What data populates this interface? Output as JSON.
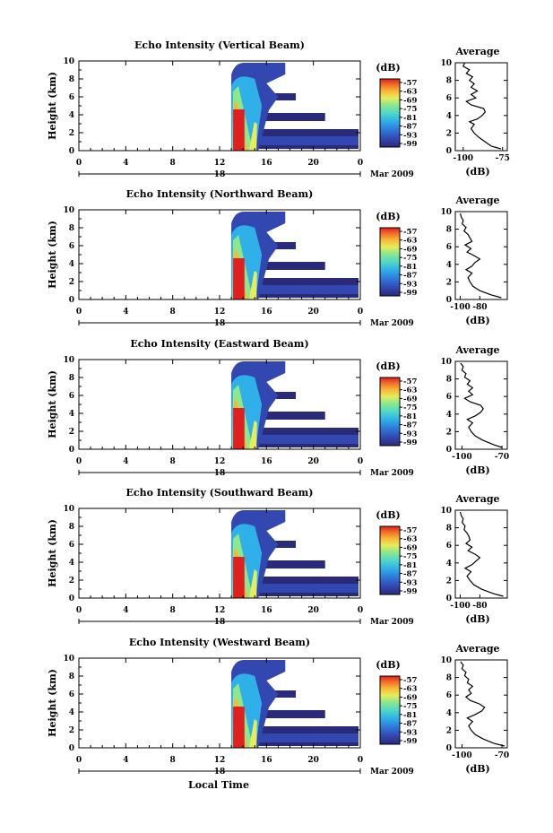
{
  "figure": {
    "x_axis_label": "Local Time",
    "date_label": "Mar 2009",
    "date_tick": "18",
    "colorbar_unit": "(dB)",
    "avg_xlabel": "(dB)",
    "avg_title": "Average"
  },
  "chart_data": [
    {
      "type": "heatmap",
      "title": "Echo Intensity (Vertical Beam)",
      "ylabel": "Height (km)",
      "xlabel": "Local Time",
      "x_ticks": [
        "0",
        "4",
        "8",
        "12",
        "16",
        "20",
        "0"
      ],
      "y_ticks": [
        "0",
        "2",
        "4",
        "6",
        "8",
        "10"
      ],
      "xlim": [
        0,
        24
      ],
      "ylim": [
        0,
        10
      ],
      "date": "Mar 2009",
      "day_tick": "18",
      "colorbar": {
        "unit": "(dB)",
        "ticks": [
          "-57",
          "-63",
          "-69",
          "-75",
          "-81",
          "-87",
          "-93",
          "-99"
        ],
        "range": [
          -99,
          -57
        ]
      },
      "echo": {
        "onset_hour": 13.0,
        "core_end_hour": 14.2,
        "slant_to_hour": 15.3,
        "blob_top_km": 9.8,
        "anvil_start_hour": 15.3
      },
      "average_profile": {
        "title": "Average",
        "xlabel": "(dB)",
        "xlim": [
          -105,
          -72
        ],
        "x_ticks": [
          "-100",
          "-75"
        ],
        "ylim": [
          0,
          10
        ],
        "y_ticks": [
          "0",
          "2",
          "4",
          "6",
          "8",
          "10"
        ],
        "height_km": [
          0.2,
          0.5,
          1.0,
          1.5,
          2.0,
          2.5,
          3.0,
          3.3,
          3.6,
          4.0,
          4.4,
          4.8,
          5.2,
          5.6,
          6.0,
          6.4,
          6.8,
          7.2,
          7.6,
          8.0,
          8.4,
          8.8,
          9.2,
          9.6,
          10.0
        ],
        "intensity_db": [
          -76,
          -82,
          -86,
          -90,
          -93,
          -95,
          -93,
          -96,
          -91,
          -88,
          -86,
          -87,
          -95,
          -98,
          -92,
          -95,
          -91,
          -95,
          -93,
          -96,
          -94,
          -98,
          -96,
          -100,
          -99
        ]
      }
    },
    {
      "type": "heatmap",
      "title": "Echo Intensity (Northward Beam)",
      "ylabel": "Height (km)",
      "xlabel": "Local Time",
      "x_ticks": [
        "0",
        "4",
        "8",
        "12",
        "16",
        "20",
        "0"
      ],
      "y_ticks": [
        "0",
        "2",
        "4",
        "6",
        "8",
        "10"
      ],
      "xlim": [
        0,
        24
      ],
      "ylim": [
        0,
        10
      ],
      "date": "Mar 2009",
      "day_tick": "18",
      "colorbar": {
        "unit": "(dB)",
        "ticks": [
          "-57",
          "-63",
          "-69",
          "-75",
          "-81",
          "-87",
          "-93",
          "-99"
        ],
        "range": [
          -99,
          -57
        ]
      },
      "echo": {
        "onset_hour": 13.0,
        "core_end_hour": 14.2,
        "slant_to_hour": 15.3,
        "blob_top_km": 9.8,
        "anvil_start_hour": 15.3
      },
      "average_profile": {
        "title": "Average",
        "xlabel": "(dB)",
        "xlim": [
          -105,
          -52
        ],
        "x_ticks": [
          "-100",
          "-80"
        ],
        "ylim": [
          0,
          10
        ],
        "y_ticks": [
          "0",
          "2",
          "4",
          "6",
          "8",
          "10"
        ],
        "height_km": [
          0.2,
          0.5,
          1.0,
          1.5,
          2.0,
          2.5,
          3.0,
          3.4,
          3.8,
          4.2,
          4.6,
          5.0,
          5.4,
          5.8,
          6.2,
          6.6,
          7.0,
          7.4,
          7.8,
          8.2,
          8.6,
          9.0,
          9.4,
          9.8
        ],
        "intensity_db": [
          -58,
          -68,
          -80,
          -87,
          -90,
          -92,
          -88,
          -94,
          -88,
          -85,
          -80,
          -86,
          -93,
          -89,
          -95,
          -88,
          -90,
          -92,
          -96,
          -94,
          -98,
          -97,
          -99,
          -100
        ]
      }
    },
    {
      "type": "heatmap",
      "title": "Echo Intensity (Eastward Beam)",
      "ylabel": "Height (km)",
      "xlabel": "Local Time",
      "x_ticks": [
        "0",
        "4",
        "8",
        "12",
        "16",
        "20",
        "0"
      ],
      "y_ticks": [
        "0",
        "2",
        "4",
        "6",
        "8",
        "10"
      ],
      "xlim": [
        0,
        24
      ],
      "ylim": [
        0,
        10
      ],
      "date": "Mar 2009",
      "day_tick": "18",
      "colorbar": {
        "unit": "(dB)",
        "ticks": [
          "-57",
          "-63",
          "-69",
          "-75",
          "-81",
          "-87",
          "-93",
          "-99"
        ],
        "range": [
          -99,
          -57
        ]
      },
      "echo": {
        "onset_hour": 13.0,
        "core_end_hour": 14.2,
        "slant_to_hour": 15.3,
        "blob_top_km": 9.8,
        "anvil_start_hour": 15.3
      },
      "average_profile": {
        "title": "Average",
        "xlabel": "(dB)",
        "xlim": [
          -105,
          -66
        ],
        "x_ticks": [
          "-100",
          "-70"
        ],
        "ylim": [
          0,
          10
        ],
        "y_ticks": [
          "0",
          "2",
          "4",
          "6",
          "8",
          "10"
        ],
        "height_km": [
          0.2,
          0.5,
          1.0,
          1.5,
          2.0,
          2.5,
          3.0,
          3.4,
          3.8,
          4.2,
          4.6,
          5.0,
          5.4,
          5.8,
          6.2,
          6.6,
          7.0,
          7.4,
          7.8,
          8.2,
          8.6,
          9.0,
          9.4,
          9.8
        ],
        "intensity_db": [
          -70,
          -76,
          -84,
          -90,
          -93,
          -95,
          -92,
          -96,
          -90,
          -86,
          -84,
          -86,
          -94,
          -98,
          -92,
          -95,
          -92,
          -96,
          -94,
          -98,
          -97,
          -100,
          -99,
          -101
        ]
      }
    },
    {
      "type": "heatmap",
      "title": "Echo Intensity (Southward Beam)",
      "ylabel": "Height (km)",
      "xlabel": "Local Time",
      "x_ticks": [
        "0",
        "4",
        "8",
        "12",
        "16",
        "20",
        "0"
      ],
      "y_ticks": [
        "0",
        "2",
        "4",
        "6",
        "8",
        "10"
      ],
      "xlim": [
        0,
        24
      ],
      "ylim": [
        0,
        10
      ],
      "date": "Mar 2009",
      "day_tick": "18",
      "colorbar": {
        "unit": "(dB)",
        "ticks": [
          "-57",
          "-63",
          "-69",
          "-75",
          "-81",
          "-87",
          "-93",
          "-99"
        ],
        "range": [
          -99,
          -57
        ]
      },
      "echo": {
        "onset_hour": 13.0,
        "core_end_hour": 14.2,
        "slant_to_hour": 15.3,
        "blob_top_km": 9.8,
        "anvil_start_hour": 15.3
      },
      "average_profile": {
        "title": "Average",
        "xlabel": "(dB)",
        "xlim": [
          -105,
          -52
        ],
        "x_ticks": [
          "-100",
          "-80"
        ],
        "ylim": [
          0,
          10
        ],
        "y_ticks": [
          "0",
          "2",
          "4",
          "6",
          "8",
          "10"
        ],
        "height_km": [
          0.2,
          0.5,
          1.0,
          1.5,
          2.0,
          2.5,
          3.0,
          3.4,
          3.8,
          4.2,
          4.6,
          5.0,
          5.4,
          5.8,
          6.2,
          6.6,
          7.0,
          7.4,
          7.8,
          8.2,
          8.6,
          9.0,
          9.4,
          9.8
        ],
        "intensity_db": [
          -56,
          -66,
          -78,
          -86,
          -90,
          -93,
          -89,
          -95,
          -88,
          -84,
          -80,
          -85,
          -92,
          -88,
          -94,
          -90,
          -91,
          -93,
          -96,
          -95,
          -98,
          -97,
          -99,
          -100
        ]
      }
    },
    {
      "type": "heatmap",
      "title": "Echo Intensity (Westward Beam)",
      "ylabel": "Height (km)",
      "xlabel": "Local Time",
      "x_ticks": [
        "0",
        "4",
        "8",
        "12",
        "16",
        "20",
        "0"
      ],
      "y_ticks": [
        "0",
        "2",
        "4",
        "6",
        "8",
        "10"
      ],
      "xlim": [
        0,
        24
      ],
      "ylim": [
        0,
        10
      ],
      "date": "Mar 2009",
      "day_tick": "18",
      "colorbar": {
        "unit": "(dB)",
        "ticks": [
          "-57",
          "-63",
          "-69",
          "-75",
          "-81",
          "-87",
          "-93",
          "-99"
        ],
        "range": [
          -99,
          -57
        ]
      },
      "echo": {
        "onset_hour": 13.0,
        "core_end_hour": 14.2,
        "slant_to_hour": 15.3,
        "blob_top_km": 9.8,
        "anvil_start_hour": 15.3
      },
      "average_profile": {
        "title": "Average",
        "xlabel": "(dB)",
        "xlim": [
          -105,
          -66
        ],
        "x_ticks": [
          "-100",
          "-70"
        ],
        "ylim": [
          0,
          10
        ],
        "y_ticks": [
          "0",
          "2",
          "4",
          "6",
          "8",
          "10"
        ],
        "height_km": [
          0.2,
          0.5,
          1.0,
          1.5,
          2.0,
          2.5,
          3.0,
          3.4,
          3.8,
          4.2,
          4.6,
          5.0,
          5.4,
          5.8,
          6.2,
          6.6,
          7.0,
          7.4,
          7.8,
          8.2,
          8.6,
          9.0,
          9.4,
          9.8
        ],
        "intensity_db": [
          -68,
          -76,
          -84,
          -90,
          -93,
          -95,
          -92,
          -96,
          -90,
          -85,
          -83,
          -87,
          -94,
          -97,
          -93,
          -95,
          -92,
          -96,
          -95,
          -98,
          -97,
          -100,
          -99,
          -101
        ]
      }
    }
  ],
  "colors": {
    "scale": [
      "#2a2a7a",
      "#3247b0",
      "#2f78d8",
      "#2fb0e8",
      "#4fd8c8",
      "#8ee88a",
      "#e6ec5c",
      "#f8b838",
      "#f06a28",
      "#e02020"
    ]
  }
}
